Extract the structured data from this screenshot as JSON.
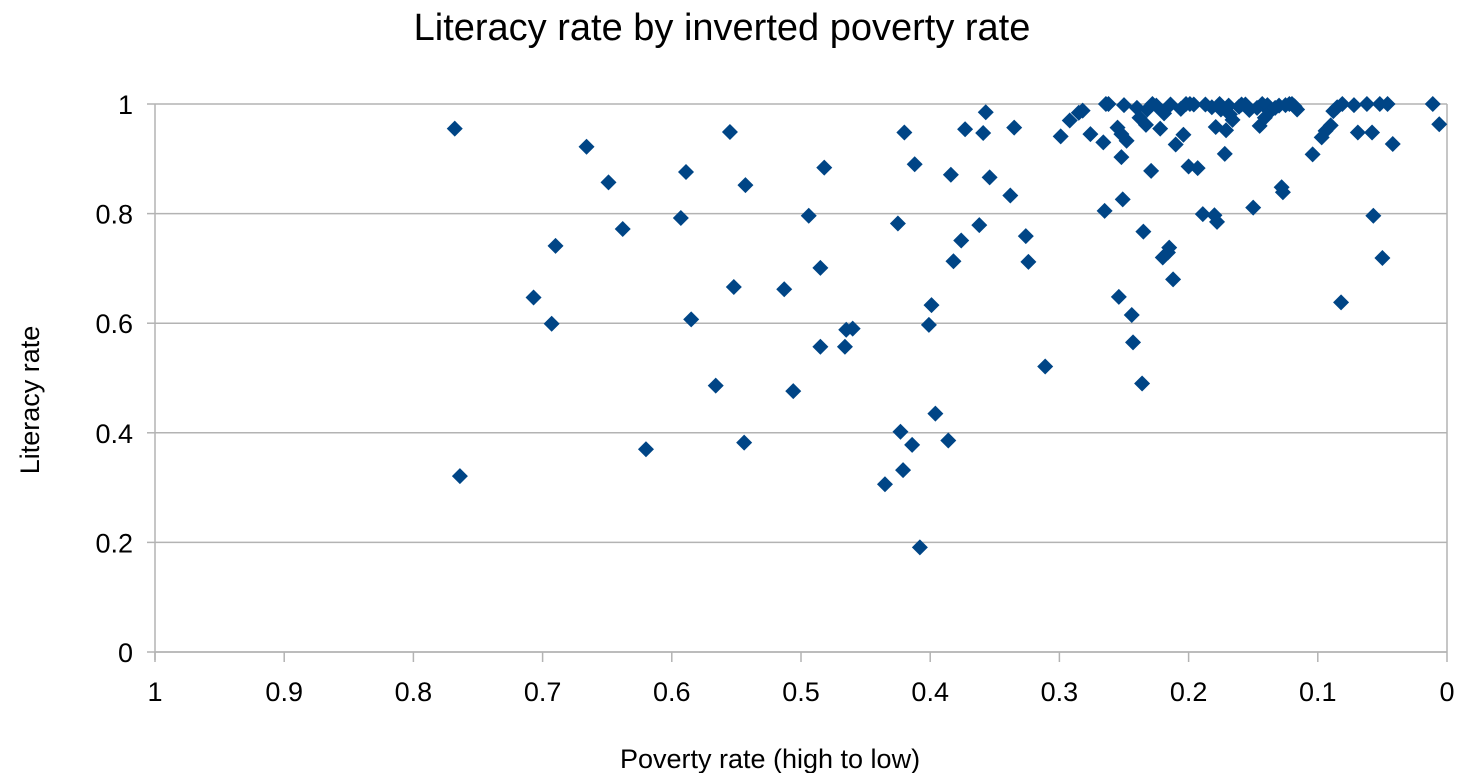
{
  "chart_data": {
    "type": "scatter",
    "title": "Literacy rate by inverted poverty rate",
    "xlabel": "Poverty rate (high to low)",
    "ylabel": "Literacy rate",
    "xlim": [
      1,
      0
    ],
    "x_reversed": true,
    "ylim": [
      0,
      1
    ],
    "x_ticks": [
      1,
      0.9,
      0.8,
      0.7,
      0.6,
      0.5,
      0.4,
      0.3,
      0.2,
      0.1,
      0
    ],
    "x_tick_labels": [
      "1",
      "0.9",
      "0.8",
      "0.7",
      "0.6",
      "0.5",
      "0.4",
      "0.3",
      "0.2",
      "0.1",
      "0"
    ],
    "y_ticks": [
      0,
      0.2,
      0.4,
      0.6,
      0.8,
      1
    ],
    "y_tick_labels": [
      "0",
      "0.2",
      "0.4",
      "0.6",
      "0.8",
      "1"
    ],
    "grid": "horizontal",
    "legend": "none",
    "marker": "diamond",
    "marker_color": "#004586",
    "grid_color": "#b3b3b3",
    "series": [
      {
        "points": [
          [
            0.768,
            0.955
          ],
          [
            0.764,
            0.321
          ],
          [
            0.707,
            0.647
          ],
          [
            0.693,
            0.599
          ],
          [
            0.69,
            0.741
          ],
          [
            0.666,
            0.922
          ],
          [
            0.649,
            0.857
          ],
          [
            0.638,
            0.772
          ],
          [
            0.62,
            0.37
          ],
          [
            0.593,
            0.792
          ],
          [
            0.589,
            0.876
          ],
          [
            0.585,
            0.607
          ],
          [
            0.566,
            0.486
          ],
          [
            0.555,
            0.949
          ],
          [
            0.552,
            0.666
          ],
          [
            0.544,
            0.382
          ],
          [
            0.543,
            0.852
          ],
          [
            0.513,
            0.662
          ],
          [
            0.506,
            0.476
          ],
          [
            0.494,
            0.796
          ],
          [
            0.485,
            0.701
          ],
          [
            0.485,
            0.557
          ],
          [
            0.482,
            0.884
          ],
          [
            0.466,
            0.557
          ],
          [
            0.465,
            0.588
          ],
          [
            0.46,
            0.59
          ],
          [
            0.435,
            0.306
          ],
          [
            0.425,
            0.782
          ],
          [
            0.423,
            0.402
          ],
          [
            0.421,
            0.332
          ],
          [
            0.42,
            0.948
          ],
          [
            0.414,
            0.378
          ],
          [
            0.412,
            0.89
          ],
          [
            0.408,
            0.191
          ],
          [
            0.401,
            0.597
          ],
          [
            0.399,
            0.633
          ],
          [
            0.396,
            0.435
          ],
          [
            0.386,
            0.386
          ],
          [
            0.384,
            0.871
          ],
          [
            0.382,
            0.713
          ],
          [
            0.376,
            0.751
          ],
          [
            0.373,
            0.954
          ],
          [
            0.362,
            0.779
          ],
          [
            0.359,
            0.947
          ],
          [
            0.357,
            0.985
          ],
          [
            0.354,
            0.866
          ],
          [
            0.338,
            0.833
          ],
          [
            0.335,
            0.957
          ],
          [
            0.326,
            0.759
          ],
          [
            0.324,
            0.712
          ],
          [
            0.311,
            0.521
          ],
          [
            0.299,
            0.941
          ],
          [
            0.292,
            0.97
          ],
          [
            0.285,
            0.984
          ],
          [
            0.282,
            0.988
          ],
          [
            0.276,
            0.945
          ],
          [
            0.266,
            0.93
          ],
          [
            0.265,
            0.805
          ],
          [
            0.264,
            1.0
          ],
          [
            0.262,
            1.0
          ],
          [
            0.255,
            0.957
          ],
          [
            0.254,
            0.648
          ],
          [
            0.252,
            0.945
          ],
          [
            0.252,
            0.903
          ],
          [
            0.251,
            0.826
          ],
          [
            0.25,
            0.998
          ],
          [
            0.248,
            0.933
          ],
          [
            0.244,
            0.615
          ],
          [
            0.243,
            0.565
          ],
          [
            0.24,
            0.993
          ],
          [
            0.238,
            0.975
          ],
          [
            0.236,
            0.49
          ],
          [
            0.235,
            0.767
          ],
          [
            0.233,
            0.962
          ],
          [
            0.232,
            0.99
          ],
          [
            0.229,
            0.878
          ],
          [
            0.228,
            1.0
          ],
          [
            0.225,
            0.997
          ],
          [
            0.222,
            0.955
          ],
          [
            0.22,
            0.72
          ],
          [
            0.219,
            0.983
          ],
          [
            0.216,
            0.729
          ],
          [
            0.215,
            0.738
          ],
          [
            0.214,
            0.999
          ],
          [
            0.212,
            0.68
          ],
          [
            0.21,
            0.926
          ],
          [
            0.206,
            0.991
          ],
          [
            0.204,
            0.944
          ],
          [
            0.202,
            1.0
          ],
          [
            0.2,
            0.886
          ],
          [
            0.199,
            1.0
          ],
          [
            0.196,
            0.999
          ],
          [
            0.193,
            0.883
          ],
          [
            0.189,
            0.799
          ],
          [
            0.187,
            0.999
          ],
          [
            0.182,
            0.994
          ],
          [
            0.18,
            0.797
          ],
          [
            0.179,
            0.958
          ],
          [
            0.178,
            0.785
          ],
          [
            0.176,
            1.0
          ],
          [
            0.175,
            0.99
          ],
          [
            0.172,
            0.909
          ],
          [
            0.171,
            0.952
          ],
          [
            0.169,
            0.997
          ],
          [
            0.168,
            0.981
          ],
          [
            0.166,
            0.971
          ],
          [
            0.161,
            0.995
          ],
          [
            0.159,
            0.999
          ],
          [
            0.156,
            0.999
          ],
          [
            0.153,
            0.989
          ],
          [
            0.15,
            0.811
          ],
          [
            0.147,
            0.993
          ],
          [
            0.145,
            0.96
          ],
          [
            0.143,
            1.0
          ],
          [
            0.141,
            0.975
          ],
          [
            0.139,
            0.998
          ],
          [
            0.137,
            0.986
          ],
          [
            0.133,
            0.993
          ],
          [
            0.13,
            0.997
          ],
          [
            0.128,
            0.848
          ],
          [
            0.127,
            0.839
          ],
          [
            0.125,
            0.998
          ],
          [
            0.122,
            1.0
          ],
          [
            0.12,
            1.0
          ],
          [
            0.118,
            0.996
          ],
          [
            0.116,
            0.99
          ],
          [
            0.104,
            0.908
          ],
          [
            0.097,
            0.939
          ],
          [
            0.094,
            0.951
          ],
          [
            0.09,
            0.961
          ],
          [
            0.088,
            0.987
          ],
          [
            0.085,
            0.994
          ],
          [
            0.082,
            0.638
          ],
          [
            0.081,
            1.0
          ],
          [
            0.072,
            0.998
          ],
          [
            0.069,
            0.948
          ],
          [
            0.062,
            1.0
          ],
          [
            0.058,
            0.948
          ],
          [
            0.057,
            0.796
          ],
          [
            0.052,
            1.0
          ],
          [
            0.05,
            0.719
          ],
          [
            0.046,
            1.0
          ],
          [
            0.042,
            0.927
          ],
          [
            0.011,
            1.0
          ],
          [
            0.006,
            0.963
          ]
        ]
      }
    ]
  }
}
